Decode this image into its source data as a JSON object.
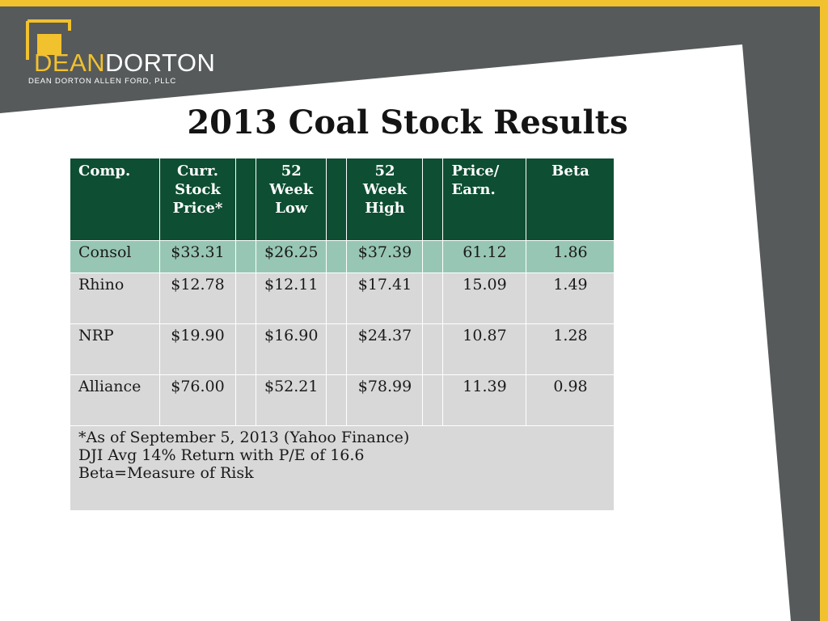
{
  "colors": {
    "accent_yellow": "#f2c12e",
    "dark_gray": "#565a5b",
    "header_green": "#0e4e32",
    "highlight_green": "#97c7b4",
    "row_gray": "#d8d8d8"
  },
  "logo": {
    "word_part1": "DEAN",
    "word_part2": "DORTON",
    "subtitle": "DEAN DORTON ALLEN FORD, PLLC"
  },
  "slide": {
    "title": "2013 Coal Stock Results"
  },
  "table": {
    "headers": [
      {
        "line1": "Comp.",
        "line2": "",
        "line3": ""
      },
      {
        "line1": "Curr.",
        "line2": "Stock",
        "line3": "Price*"
      },
      {
        "line1": "",
        "line2": "",
        "line3": ""
      },
      {
        "line1": "52",
        "line2": "Week",
        "line3": "Low"
      },
      {
        "line1": "",
        "line2": "",
        "line3": ""
      },
      {
        "line1": "52",
        "line2": "Week",
        "line3": "High"
      },
      {
        "line1": "",
        "line2": "",
        "line3": ""
      },
      {
        "line1": "Price/",
        "line2": "Earn.",
        "line3": ""
      },
      {
        "line1": "Beta",
        "line2": "",
        "line3": ""
      }
    ],
    "rows": [
      {
        "company": "Consol",
        "price": "$33.31",
        "low": "$26.25",
        "high": "$37.39",
        "pe": "61.12",
        "beta": "1.86"
      },
      {
        "company": "Rhino",
        "price": "$12.78",
        "low": "$12.11",
        "high": "$17.41",
        "pe": "15.09",
        "beta": "1.49"
      },
      {
        "company": "NRP",
        "price": "$19.90",
        "low": "$16.90",
        "high": "$24.37",
        "pe": "10.87",
        "beta": "1.28"
      },
      {
        "company": "Alliance",
        "price": "$76.00",
        "low": "$52.21",
        "high": "$78.99",
        "pe": "11.39",
        "beta": "0.98"
      }
    ],
    "notes": [
      "*As of September 5, 2013 (Yahoo Finance)",
      "DJI Avg 14% Return with P/E of 16.6",
      "Beta=Measure of Risk"
    ]
  }
}
